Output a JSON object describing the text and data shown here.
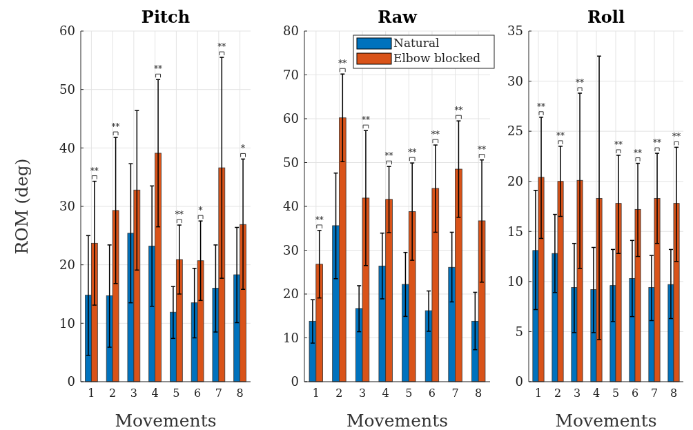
{
  "chart_data": [
    {
      "type": "bar",
      "title": "Pitch",
      "xlabel": "Movements",
      "ylabel": "ROM (deg)",
      "categories": [
        "1",
        "2",
        "3",
        "4",
        "5",
        "6",
        "7",
        "8"
      ],
      "ylim": [
        0,
        60
      ],
      "yticks": [
        0,
        10,
        20,
        30,
        40,
        50,
        60
      ],
      "grid": true,
      "legend": false,
      "series": [
        {
          "color": "#0072bd",
          "values": [
            14.8,
            14.7,
            25.4,
            23.2,
            11.9,
            13.5,
            16.0,
            18.3
          ],
          "errors": [
            [
              4.5,
              25
            ],
            [
              5.9,
              23.4
            ],
            [
              13.5,
              37.3
            ],
            [
              12.9,
              33.5
            ],
            [
              7.4,
              16.3
            ],
            [
              7.5,
              19.4
            ],
            [
              8.5,
              23.4
            ],
            [
              10.1,
              26.4
            ]
          ]
        },
        {
          "color": "#d95319",
          "values": [
            23.7,
            29.3,
            32.8,
            39.1,
            20.9,
            20.7,
            36.6,
            26.9
          ],
          "errors": [
            [
              13.1,
              34.3
            ],
            [
              16.8,
              41.8
            ],
            [
              19.1,
              46.4
            ],
            [
              26.5,
              51.7
            ],
            [
              15,
              26.8
            ],
            [
              13.9,
              27.5
            ],
            [
              17.7,
              55.5
            ],
            [
              15.8,
              38.1
            ]
          ]
        }
      ],
      "annotations": [
        {
          "text": "**",
          "x": "1",
          "y": 34.3
        },
        {
          "text": "**",
          "x": "2",
          "y": 41.8
        },
        {
          "text": "**",
          "x": "4",
          "y": 51.7
        },
        {
          "text": "**",
          "x": "5",
          "y": 26.8
        },
        {
          "text": "*",
          "x": "6",
          "y": 27.5
        },
        {
          "text": "**",
          "x": "7",
          "y": 55.5
        },
        {
          "text": "*",
          "x": "8",
          "y": 38.1
        }
      ]
    },
    {
      "type": "bar",
      "title": "Raw",
      "xlabel": "Movements",
      "categories": [
        "1",
        "2",
        "3",
        "4",
        "5",
        "6",
        "7",
        "8"
      ],
      "ylim": [
        0,
        80
      ],
      "yticks": [
        0,
        10,
        20,
        30,
        40,
        50,
        60,
        70,
        80
      ],
      "grid": true,
      "legend": "top right",
      "series": [
        {
          "name": "Natural",
          "color": "#0072bd",
          "values": [
            13.8,
            35.6,
            16.7,
            26.4,
            22.2,
            16.2,
            26.1,
            13.8
          ],
          "errors": [
            [
              8.8,
              18.7
            ],
            [
              23.5,
              47.6
            ],
            [
              11.4,
              21.9
            ],
            [
              18.9,
              33.9
            ],
            [
              14.9,
              29.5
            ],
            [
              11.5,
              20.7
            ],
            [
              18.2,
              34.1
            ],
            [
              7.3,
              20.4
            ]
          ]
        },
        {
          "name": "Elbow blocked",
          "color": "#d95319",
          "values": [
            26.8,
            60.2,
            41.9,
            41.6,
            38.8,
            44.1,
            48.5,
            36.7
          ],
          "errors": [
            [
              19.1,
              34.5
            ],
            [
              50.2,
              70.2
            ],
            [
              26.5,
              57.3
            ],
            [
              34,
              49.1
            ],
            [
              27.7,
              49.9
            ],
            [
              34.1,
              54
            ],
            [
              37.5,
              59.5
            ],
            [
              22.7,
              50.6
            ]
          ]
        }
      ],
      "annotations": [
        {
          "text": "**",
          "x": "1",
          "y": 34.5
        },
        {
          "text": "**",
          "x": "2",
          "y": 70.2
        },
        {
          "text": "**",
          "x": "3",
          "y": 57.3
        },
        {
          "text": "**",
          "x": "4",
          "y": 49.1
        },
        {
          "text": "**",
          "x": "5",
          "y": 49.9
        },
        {
          "text": "**",
          "x": "6",
          "y": 54
        },
        {
          "text": "**",
          "x": "7",
          "y": 59.5
        },
        {
          "text": "**",
          "x": "8",
          "y": 50.6
        }
      ]
    },
    {
      "type": "bar",
      "title": "Roll",
      "xlabel": "Movements",
      "categories": [
        "1",
        "2",
        "3",
        "4",
        "5",
        "6",
        "7",
        "8"
      ],
      "ylim": [
        0,
        35
      ],
      "yticks": [
        0,
        5,
        10,
        15,
        20,
        25,
        30,
        35
      ],
      "grid": true,
      "legend": false,
      "series": [
        {
          "color": "#0072bd",
          "values": [
            13.1,
            12.8,
            9.4,
            9.2,
            9.6,
            10.3,
            9.4,
            9.7
          ],
          "errors": [
            [
              7.2,
              19.1
            ],
            [
              8.9,
              16.7
            ],
            [
              4.9,
              13.8
            ],
            [
              4.9,
              13.4
            ],
            [
              6,
              13.2
            ],
            [
              6.5,
              14.1
            ],
            [
              6.1,
              12.6
            ],
            [
              6.3,
              13.2
            ]
          ]
        },
        {
          "color": "#d95319",
          "values": [
            20.4,
            20.0,
            20.1,
            18.3,
            17.8,
            17.2,
            18.3,
            17.8
          ],
          "errors": [
            [
              14.3,
              26.4
            ],
            [
              16.5,
              23.5
            ],
            [
              11.3,
              28.8
            ],
            [
              4.2,
              32.5
            ],
            [
              12.8,
              22.6
            ],
            [
              12.5,
              21.8
            ],
            [
              13.8,
              22.8
            ],
            [
              12,
              23.4
            ]
          ]
        }
      ],
      "annotations": [
        {
          "text": "**",
          "x": "1",
          "y": 26.4
        },
        {
          "text": "**",
          "x": "2",
          "y": 23.5
        },
        {
          "text": "**",
          "x": "3",
          "y": 28.8
        },
        {
          "text": "**",
          "x": "5",
          "y": 22.6
        },
        {
          "text": "**",
          "x": "6",
          "y": 21.8
        },
        {
          "text": "**",
          "x": "7",
          "y": 22.8
        },
        {
          "text": "**",
          "x": "8",
          "y": 23.4
        }
      ]
    }
  ]
}
